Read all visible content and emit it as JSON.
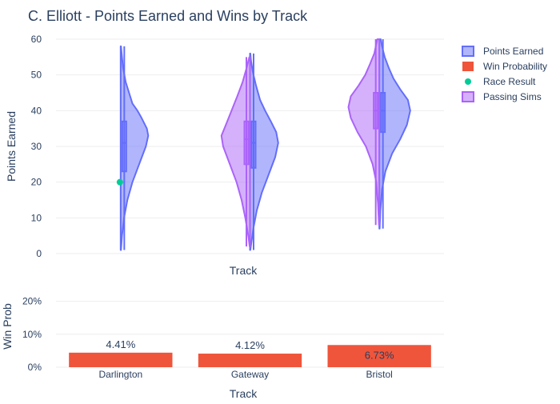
{
  "chart_data": {
    "title": "C. Elliott - Points Earned and Wins by Track",
    "legend_position": "top-right",
    "legend": [
      {
        "label": "Points Earned",
        "symbol": "violin",
        "color": "#636efa"
      },
      {
        "label": "Win Probability",
        "symbol": "bar",
        "color": "#ef553b"
      },
      {
        "label": "Race Result",
        "symbol": "dot",
        "color": "#00cc96"
      },
      {
        "label": "Passing Sims",
        "symbol": "violin",
        "color": "#ab63fa"
      }
    ],
    "categories": [
      "Darlington",
      "Gateway",
      "Bristol"
    ],
    "top_panel": {
      "type": "violin",
      "ylabel": "Points Earned",
      "xlabel": "Track",
      "ylim": [
        0,
        60
      ],
      "yticks": [
        0,
        10,
        20,
        30,
        40,
        50,
        60
      ],
      "grid": true,
      "series": [
        {
          "name": "Points Earned",
          "side": "positive",
          "color": "#636efa",
          "tracks": [
            {
              "track": "Darlington",
              "min": 1,
              "max": 58,
              "q1": 23,
              "median": 31,
              "q3": 37,
              "density": [
                [
                  1,
                  0.01
                ],
                [
                  5,
                  0.04
                ],
                [
                  10,
                  0.1
                ],
                [
                  15,
                  0.2
                ],
                [
                  20,
                  0.35
                ],
                [
                  25,
                  0.55
                ],
                [
                  30,
                  0.75
                ],
                [
                  33,
                  0.82
                ],
                [
                  35,
                  0.78
                ],
                [
                  38,
                  0.62
                ],
                [
                  40,
                  0.5
                ],
                [
                  42,
                  0.35
                ],
                [
                  45,
                  0.25
                ],
                [
                  48,
                  0.15
                ],
                [
                  52,
                  0.07
                ],
                [
                  56,
                  0.03
                ],
                [
                  58,
                  0.01
                ]
              ]
            },
            {
              "track": "Gateway",
              "min": 1,
              "max": 56,
              "q1": 24,
              "median": 31,
              "q3": 37,
              "density": [
                [
                  1,
                  0.01
                ],
                [
                  3,
                  0.04
                ],
                [
                  7,
                  0.1
                ],
                [
                  12,
                  0.2
                ],
                [
                  17,
                  0.35
                ],
                [
                  22,
                  0.55
                ],
                [
                  27,
                  0.75
                ],
                [
                  31,
                  0.84
                ],
                [
                  34,
                  0.78
                ],
                [
                  37,
                  0.62
                ],
                [
                  40,
                  0.45
                ],
                [
                  43,
                  0.3
                ],
                [
                  47,
                  0.18
                ],
                [
                  51,
                  0.08
                ],
                [
                  54,
                  0.03
                ],
                [
                  56,
                  0.01
                ]
              ]
            },
            {
              "track": "Bristol",
              "min": 7,
              "max": 60,
              "q1": 34,
              "median": 40,
              "q3": 45,
              "density": [
                [
                  7,
                  0.01
                ],
                [
                  12,
                  0.03
                ],
                [
                  18,
                  0.08
                ],
                [
                  23,
                  0.18
                ],
                [
                  28,
                  0.38
                ],
                [
                  32,
                  0.62
                ],
                [
                  36,
                  0.82
                ],
                [
                  40,
                  0.92
                ],
                [
                  43,
                  0.85
                ],
                [
                  46,
                  0.62
                ],
                [
                  49,
                  0.42
                ],
                [
                  52,
                  0.28
                ],
                [
                  55,
                  0.16
                ],
                [
                  58,
                  0.08
                ],
                [
                  60,
                  0.04
                ]
              ]
            }
          ]
        },
        {
          "name": "Passing Sims",
          "side": "negative",
          "color": "#ab63fa",
          "tracks": [
            {
              "track": "Gateway",
              "min": 2,
              "max": 55,
              "q1": 25,
              "median": 32,
              "q3": 37,
              "density": [
                [
                  2,
                  0.01
                ],
                [
                  5,
                  0.05
                ],
                [
                  10,
                  0.14
                ],
                [
                  15,
                  0.25
                ],
                [
                  20,
                  0.4
                ],
                [
                  25,
                  0.6
                ],
                [
                  30,
                  0.8
                ],
                [
                  33,
                  0.85
                ],
                [
                  36,
                  0.72
                ],
                [
                  40,
                  0.55
                ],
                [
                  44,
                  0.38
                ],
                [
                  48,
                  0.22
                ],
                [
                  52,
                  0.1
                ],
                [
                  55,
                  0.02
                ]
              ]
            },
            {
              "track": "Bristol",
              "min": 8,
              "max": 60,
              "q1": 35,
              "median": 40,
              "q3": 45,
              "density": [
                [
                  8,
                  0.01
                ],
                [
                  14,
                  0.04
                ],
                [
                  20,
                  0.09
                ],
                [
                  25,
                  0.2
                ],
                [
                  30,
                  0.4
                ],
                [
                  34,
                  0.65
                ],
                [
                  38,
                  0.85
                ],
                [
                  41,
                  0.92
                ],
                [
                  44,
                  0.85
                ],
                [
                  47,
                  0.62
                ],
                [
                  50,
                  0.42
                ],
                [
                  53,
                  0.28
                ],
                [
                  56,
                  0.15
                ],
                [
                  60,
                  0.06
                ]
              ]
            }
          ]
        }
      ],
      "race_result": {
        "name": "Race Result",
        "color": "#00cc96",
        "points": [
          {
            "track": "Darlington",
            "value": 20
          }
        ]
      }
    },
    "bottom_panel": {
      "type": "bar",
      "name": "Win Probability",
      "color": "#ef553b",
      "ylabel": "Win Prob",
      "xlabel": "Track",
      "ylim": [
        0,
        0.25
      ],
      "yticks": [
        0,
        0.1,
        0.2
      ],
      "ytick_labels": [
        "0%",
        "10%",
        "20%"
      ],
      "grid": true,
      "values": [
        0.0441,
        0.0412,
        0.0673
      ],
      "value_labels": [
        "4.41%",
        "4.12%",
        "6.73%"
      ],
      "label_position": [
        "outside",
        "outside",
        "inside"
      ]
    }
  }
}
